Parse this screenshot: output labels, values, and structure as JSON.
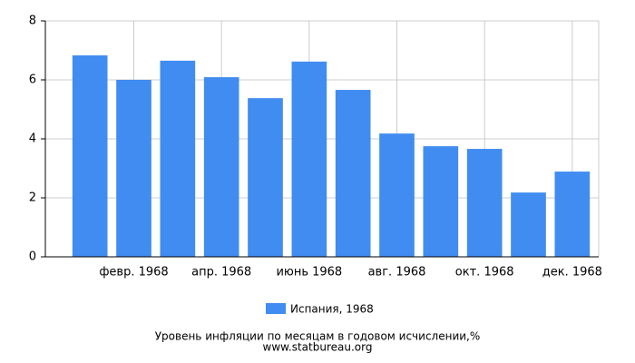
{
  "chart_data": {
    "type": "bar",
    "title": "Уровень инфляции по месяцам в годовом исчислении,%",
    "source": "www.statbureau.org",
    "categories": [
      null,
      "февр. 1968",
      null,
      "апр. 1968",
      null,
      "июнь 1968",
      null,
      "авг. 1968",
      null,
      "окт. 1968",
      null,
      "дек. 1968"
    ],
    "series": [
      {
        "name": "Испания, 1968",
        "color": "#418cf0",
        "values": [
          6.83,
          6.0,
          6.65,
          6.09,
          5.38,
          6.62,
          5.66,
          4.18,
          3.75,
          3.66,
          2.18,
          2.89
        ]
      }
    ],
    "ylim": [
      0,
      8
    ],
    "yticks": [
      0,
      2,
      4,
      6,
      8
    ],
    "grid": true
  }
}
